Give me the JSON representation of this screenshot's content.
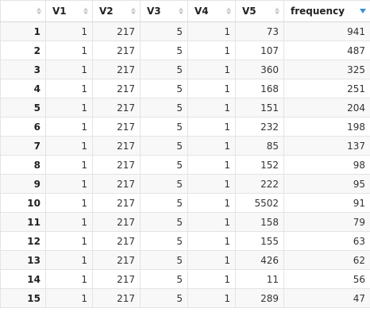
{
  "table": {
    "columns": [
      {
        "label": "",
        "sort": "none"
      },
      {
        "label": "V1",
        "sort": "none"
      },
      {
        "label": "V2",
        "sort": "none"
      },
      {
        "label": "V3",
        "sort": "none"
      },
      {
        "label": "V4",
        "sort": "none"
      },
      {
        "label": "V5",
        "sort": "none"
      },
      {
        "label": "frequency",
        "sort": "descending"
      }
    ],
    "rows": [
      [
        "1",
        "1",
        "217",
        "5",
        "1",
        "73",
        "941"
      ],
      [
        "2",
        "1",
        "217",
        "5",
        "1",
        "107",
        "487"
      ],
      [
        "3",
        "1",
        "217",
        "5",
        "1",
        "360",
        "325"
      ],
      [
        "4",
        "1",
        "217",
        "5",
        "1",
        "168",
        "251"
      ],
      [
        "5",
        "1",
        "217",
        "5",
        "1",
        "151",
        "204"
      ],
      [
        "6",
        "1",
        "217",
        "5",
        "1",
        "232",
        "198"
      ],
      [
        "7",
        "1",
        "217",
        "5",
        "1",
        "85",
        "137"
      ],
      [
        "8",
        "1",
        "217",
        "5",
        "1",
        "152",
        "98"
      ],
      [
        "9",
        "1",
        "217",
        "5",
        "1",
        "222",
        "95"
      ],
      [
        "10",
        "1",
        "217",
        "5",
        "1",
        "5502",
        "91"
      ],
      [
        "11",
        "1",
        "217",
        "5",
        "1",
        "158",
        "79"
      ],
      [
        "12",
        "1",
        "217",
        "5",
        "1",
        "155",
        "63"
      ],
      [
        "13",
        "1",
        "217",
        "5",
        "1",
        "426",
        "62"
      ],
      [
        "14",
        "1",
        "217",
        "5",
        "1",
        "11",
        "56"
      ],
      [
        "15",
        "1",
        "217",
        "5",
        "1",
        "289",
        "47"
      ]
    ]
  },
  "colors": {
    "sort_active": "#3b8fdc",
    "sort_inactive": "#c8c8c8",
    "stripe": "#f8f8f8",
    "border": "#e4e4e4"
  }
}
